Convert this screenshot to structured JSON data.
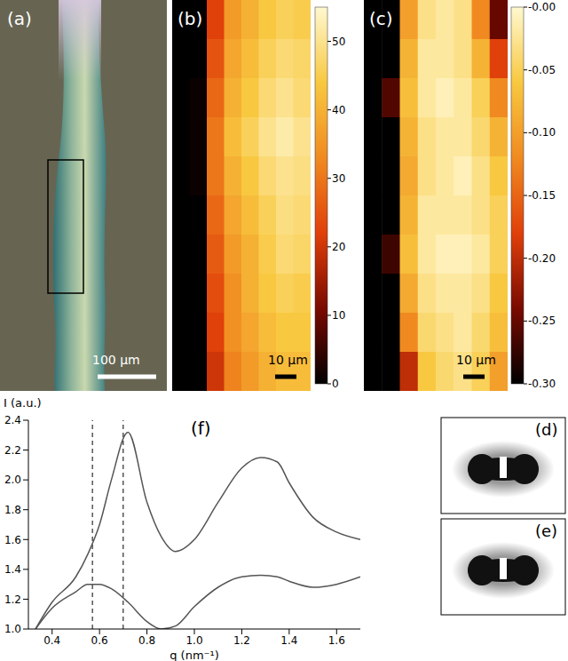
{
  "panels": {
    "a": {
      "label": "(a)",
      "scale_bar": "100 µm"
    },
    "b": {
      "label": "(b)",
      "scale_bar": "10 µm",
      "heatmap": {
        "cells": [
          [
            0,
            0,
            22,
            36,
            40,
            44,
            46,
            45
          ],
          [
            0,
            0,
            25,
            38,
            42,
            46,
            48,
            47
          ],
          [
            0,
            1,
            28,
            40,
            44,
            48,
            50,
            48
          ],
          [
            0,
            1,
            30,
            42,
            46,
            50,
            52,
            50
          ],
          [
            0,
            1,
            30,
            40,
            44,
            48,
            50,
            49
          ],
          [
            0,
            0,
            28,
            38,
            42,
            46,
            49,
            48
          ],
          [
            0,
            0,
            26,
            36,
            40,
            45,
            48,
            47
          ],
          [
            0,
            0,
            24,
            34,
            40,
            44,
            46,
            45
          ],
          [
            0,
            0,
            22,
            34,
            38,
            42,
            44,
            44
          ],
          [
            0,
            0,
            20,
            32,
            36,
            40,
            42,
            42
          ]
        ],
        "clim": [
          0,
          55
        ],
        "cticks": [
          0,
          10,
          20,
          30,
          40,
          50
        ]
      }
    },
    "c": {
      "label": "(c)",
      "scale_bar": "10 µm",
      "heatmap": {
        "cells": [
          [
            -0.3,
            -0.3,
            -0.1,
            -0.03,
            -0.02,
            -0.03,
            -0.12,
            -0.25
          ],
          [
            -0.3,
            -0.3,
            -0.08,
            -0.02,
            -0.02,
            -0.03,
            -0.08,
            -0.18
          ],
          [
            -0.3,
            -0.26,
            -0.07,
            -0.02,
            -0.01,
            -0.02,
            -0.05,
            -0.12
          ],
          [
            -0.3,
            -0.3,
            -0.08,
            -0.03,
            -0.02,
            -0.02,
            -0.04,
            -0.08
          ],
          [
            -0.3,
            -0.3,
            -0.09,
            -0.03,
            -0.02,
            -0.01,
            -0.03,
            -0.06
          ],
          [
            -0.3,
            -0.3,
            -0.08,
            -0.02,
            -0.02,
            -0.02,
            -0.03,
            -0.05
          ],
          [
            -0.3,
            -0.27,
            -0.07,
            -0.02,
            -0.01,
            -0.01,
            -0.02,
            -0.05
          ],
          [
            -0.3,
            -0.3,
            -0.09,
            -0.03,
            -0.02,
            -0.02,
            -0.03,
            -0.06
          ],
          [
            -0.3,
            -0.3,
            -0.12,
            -0.04,
            -0.03,
            -0.02,
            -0.04,
            -0.07
          ],
          [
            -0.3,
            -0.3,
            -0.2,
            -0.06,
            -0.04,
            -0.03,
            -0.05,
            -0.1
          ]
        ],
        "clim": [
          -0.3,
          0
        ],
        "cticks": [
          {
            "value": 0,
            "label": "-0.00"
          },
          -0.05,
          {
            "value": -0.1,
            "label": "-0.10"
          },
          -0.15,
          {
            "value": -0.2,
            "label": "-0.20"
          },
          -0.25,
          {
            "value": -0.3,
            "label": "-0.30"
          }
        ]
      }
    },
    "d": {
      "label": "(d)"
    },
    "e": {
      "label": "(e)"
    }
  },
  "chart_data": {
    "type": "line",
    "panel_label": "(f)",
    "y_label": "I (a.u.)",
    "x_label": "q (nm⁻¹)",
    "x": [
      0.33,
      0.4,
      0.5,
      0.55,
      0.6,
      0.65,
      0.72,
      0.8,
      0.86,
      0.92,
      1.0,
      1.1,
      1.2,
      1.28,
      1.35,
      1.4,
      1.5,
      1.6,
      1.7
    ],
    "series": [
      {
        "color": "#555555",
        "values": [
          1.0,
          1.18,
          1.35,
          1.5,
          1.7,
          2.0,
          2.32,
          1.85,
          1.62,
          1.52,
          1.6,
          1.85,
          2.08,
          2.15,
          2.12,
          1.98,
          1.75,
          1.65,
          1.6
        ]
      },
      {
        "color": "#555555",
        "values": [
          1.0,
          1.14,
          1.25,
          1.3,
          1.3,
          1.27,
          1.18,
          1.05,
          1.0,
          1.02,
          1.15,
          1.28,
          1.35,
          1.36,
          1.35,
          1.32,
          1.28,
          1.3,
          1.35
        ]
      }
    ],
    "vlines": [
      0.57,
      0.7
    ],
    "xlim": [
      0.3,
      1.7
    ],
    "xticks": [
      0.4,
      0.6,
      0.8,
      {
        "value": 1,
        "label": "1.0"
      },
      1.2,
      1.4,
      1.6
    ],
    "ylim": [
      1,
      2.4
    ],
    "yticks": [
      {
        "value": 1,
        "label": "1.0"
      },
      1.2,
      1.4,
      1.6,
      1.8,
      {
        "value": 2,
        "label": "2.0"
      },
      2.2,
      2.4
    ],
    "grid": false
  }
}
